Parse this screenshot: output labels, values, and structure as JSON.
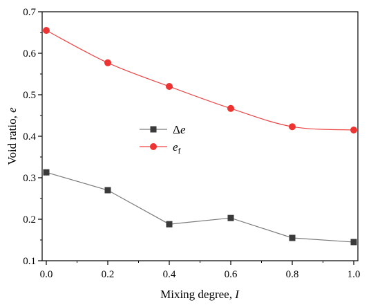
{
  "chart_data": {
    "type": "line",
    "xlabel": "Mixing degree, ",
    "xlabel_var": "I",
    "ylabel": "Void ratio, ",
    "ylabel_var": "e",
    "xlim": [
      0.0,
      1.0
    ],
    "ylim": [
      0.1,
      0.7
    ],
    "x_ticks": [
      0.0,
      0.2,
      0.4,
      0.6,
      0.8,
      1.0
    ],
    "x_tick_labels": [
      "0.0",
      "0.2",
      "0.4",
      "0.6",
      "0.8",
      "1.0"
    ],
    "y_ticks": [
      0.1,
      0.2,
      0.3,
      0.4,
      0.5,
      0.6,
      0.7
    ],
    "y_tick_labels": [
      "0.1",
      "0.2",
      "0.3",
      "0.4",
      "0.5",
      "0.6",
      "0.7"
    ],
    "grid": false,
    "legend_position": "center-left",
    "x": [
      0.0,
      0.2,
      0.4,
      0.6,
      0.8,
      1.0
    ],
    "series": [
      {
        "name": "Δe",
        "name_prefix": "Δ",
        "name_main": "e",
        "name_sub": "",
        "values": [
          0.313,
          0.27,
          0.188,
          0.203,
          0.155,
          0.145
        ],
        "marker": "square",
        "marker_color": "#3a3a3a",
        "line_color": "#7a7a7a",
        "smooth": false
      },
      {
        "name": "ef",
        "name_prefix": "",
        "name_main": "e",
        "name_sub": "f",
        "values": [
          0.655,
          0.577,
          0.52,
          0.467,
          0.423,
          0.415
        ],
        "marker": "circle",
        "marker_color": "#ee3333",
        "line_color": "#ee4444",
        "smooth": true
      }
    ]
  }
}
